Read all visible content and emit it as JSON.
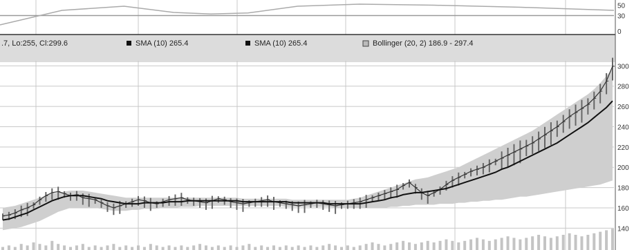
{
  "legend": {
    "ohlc_text": ".7, Lo:255, Cl:299.6",
    "sma1_text": "SMA (10) 265.4",
    "sma2_text": "SMA (10) 265.4",
    "bollinger_text": "Bollinger (20, 2) 186.9 - 297.4"
  },
  "colors": {
    "background": "#ffffff",
    "grid": "#c8c8c8",
    "legend_band": "#dcdcdc",
    "band_fill": "#cfcfcf",
    "price": "#333333",
    "sma": "#111111",
    "volume": "#c4c4c4"
  },
  "chart_data": [
    {
      "type": "line",
      "panel": "oscillator",
      "yticks": [
        50,
        30,
        0
      ],
      "ylim": [
        0,
        60
      ],
      "x": [
        0,
        10,
        20,
        28,
        34,
        40,
        48,
        58,
        70,
        84,
        99
      ],
      "values": [
        12,
        40,
        48,
        36,
        33,
        35,
        48,
        52,
        50,
        46,
        40
      ]
    },
    {
      "type": "line",
      "panel": "price",
      "title": "",
      "xlabel": "",
      "ylabel": "",
      "ylim": [
        130,
        305
      ],
      "yticks": [
        300,
        280,
        260,
        240,
        220,
        200,
        180,
        160,
        140
      ],
      "grid": true,
      "x_count": 100,
      "series": [
        {
          "name": "Price",
          "role": "close",
          "values": [
            152,
            153,
            155,
            158,
            160,
            163,
            168,
            172,
            175,
            176,
            174,
            172,
            173,
            170,
            169,
            168,
            165,
            162,
            160,
            162,
            164,
            166,
            168,
            167,
            165,
            164,
            166,
            168,
            169,
            170,
            168,
            167,
            166,
            165,
            167,
            169,
            168,
            166,
            165,
            164,
            165,
            166,
            167,
            168,
            166,
            165,
            164,
            163,
            162,
            163,
            164,
            165,
            164,
            163,
            162,
            163,
            164,
            165,
            166,
            168,
            170,
            172,
            174,
            176,
            178,
            182,
            185,
            180,
            175,
            172,
            175,
            178,
            183,
            187,
            190,
            193,
            196,
            198,
            200,
            203,
            206,
            209,
            212,
            215,
            218,
            221,
            224,
            228,
            232,
            236,
            240,
            245,
            250,
            254,
            258,
            262,
            268,
            275,
            285,
            299.6
          ]
        },
        {
          "name": "SMA (10)",
          "role": "sma",
          "values": [
            148,
            149,
            151,
            153,
            155,
            158,
            161,
            164,
            167,
            169,
            171,
            172,
            172,
            172,
            171,
            170,
            169,
            167,
            166,
            165,
            164,
            164,
            164,
            165,
            165,
            165,
            165,
            166,
            166,
            166,
            167,
            167,
            167,
            167,
            167,
            167,
            167,
            167,
            167,
            166,
            166,
            166,
            166,
            166,
            166,
            166,
            166,
            165,
            165,
            165,
            165,
            165,
            165,
            164,
            164,
            164,
            164,
            164,
            164,
            165,
            166,
            167,
            168,
            170,
            171,
            173,
            174,
            175,
            175,
            176,
            177,
            178,
            179,
            181,
            183,
            185,
            187,
            189,
            191,
            193,
            195,
            198,
            200,
            203,
            206,
            209,
            212,
            215,
            218,
            221,
            224,
            228,
            232,
            236,
            240,
            244,
            249,
            254,
            259,
            265.4
          ]
        },
        {
          "name": "Bollinger Upper",
          "role": "band_upper",
          "values": [
            160,
            161,
            162,
            164,
            166,
            168,
            170,
            172,
            174,
            175,
            176,
            177,
            177,
            177,
            176,
            175,
            174,
            173,
            172,
            171,
            170,
            170,
            170,
            170,
            170,
            170,
            170,
            170,
            170,
            170,
            170,
            170,
            170,
            170,
            170,
            170,
            170,
            170,
            170,
            169,
            169,
            169,
            169,
            169,
            169,
            169,
            169,
            168,
            168,
            168,
            168,
            168,
            168,
            168,
            168,
            168,
            168,
            169,
            170,
            172,
            174,
            176,
            178,
            180,
            182,
            184,
            186,
            188,
            189,
            190,
            192,
            194,
            196,
            198,
            200,
            203,
            206,
            209,
            212,
            215,
            218,
            221,
            224,
            227,
            230,
            233,
            236,
            240,
            244,
            248,
            252,
            256,
            260,
            264,
            268,
            272,
            277,
            283,
            290,
            297.4
          ]
        },
        {
          "name": "Bollinger Lower",
          "role": "band_lower",
          "values": [
            138,
            139,
            140,
            141,
            143,
            145,
            147,
            150,
            153,
            156,
            158,
            160,
            160,
            160,
            160,
            160,
            159,
            158,
            157,
            157,
            157,
            158,
            158,
            159,
            159,
            159,
            160,
            160,
            160,
            161,
            161,
            161,
            162,
            162,
            162,
            162,
            162,
            162,
            162,
            162,
            162,
            162,
            162,
            162,
            162,
            162,
            161,
            161,
            161,
            161,
            161,
            161,
            161,
            161,
            160,
            160,
            160,
            160,
            160,
            160,
            160,
            160,
            160,
            161,
            161,
            162,
            162,
            163,
            163,
            163,
            163,
            164,
            164,
            164,
            165,
            165,
            166,
            166,
            167,
            167,
            168,
            168,
            169,
            170,
            171,
            171,
            172,
            173,
            174,
            175,
            176,
            177,
            178,
            179,
            180,
            181,
            182,
            183,
            185,
            186.9
          ]
        }
      ],
      "volume": [
        2,
        3,
        2,
        4,
        3,
        5,
        4,
        3,
        6,
        4,
        3,
        2,
        3,
        4,
        2,
        3,
        2,
        3,
        4,
        2,
        3,
        2,
        3,
        2,
        4,
        3,
        2,
        3,
        2,
        3,
        2,
        3,
        4,
        3,
        2,
        3,
        2,
        3,
        2,
        3,
        4,
        2,
        3,
        2,
        3,
        2,
        3,
        2,
        3,
        2,
        3,
        2,
        3,
        4,
        3,
        2,
        3,
        2,
        3,
        4,
        5,
        4,
        3,
        4,
        5,
        6,
        5,
        4,
        5,
        6,
        5,
        6,
        7,
        6,
        5,
        6,
        7,
        8,
        7,
        6,
        7,
        8,
        9,
        8,
        7,
        8,
        9,
        10,
        9,
        8,
        9,
        10,
        11,
        10,
        9,
        10,
        11,
        12,
        13,
        14
      ]
    }
  ]
}
